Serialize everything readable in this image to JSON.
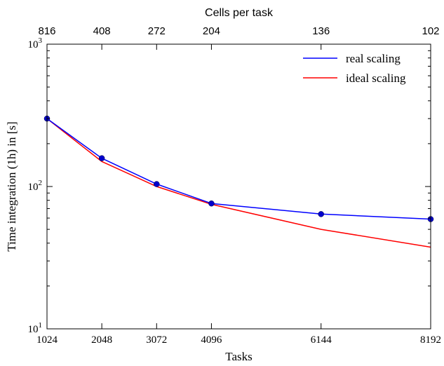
{
  "chart_data": {
    "type": "line",
    "xlabel": "Tasks",
    "ylabel": "Time integration (1h) in [s]",
    "top_xlabel": "Cells per task",
    "x_scale": "linear",
    "y_scale": "log",
    "xlim": [
      1024,
      8192
    ],
    "ylim": [
      10,
      1000
    ],
    "x_ticks": [
      1024,
      2048,
      3072,
      4096,
      6144,
      8192
    ],
    "x_tick_labels": [
      "1024",
      "2048",
      "3072",
      "4096",
      "6144",
      "8192"
    ],
    "top_ticks": [
      1024,
      2048,
      3072,
      4096,
      6144,
      8192
    ],
    "top_tick_labels": [
      "816",
      "408",
      "272",
      "204",
      "136",
      "102"
    ],
    "y_ticks": [
      10,
      100,
      1000
    ],
    "y_tick_labels": [
      {
        "base": "10",
        "exp": "1"
      },
      {
        "base": "10",
        "exp": "2"
      },
      {
        "base": "10",
        "exp": "3"
      }
    ],
    "grid": false,
    "legend_position": "top-right",
    "series": [
      {
        "name": "real scaling",
        "color": "#0000ff",
        "marker_color": "#0000cc",
        "markers": true,
        "x": [
          1024,
          2048,
          3072,
          4096,
          6144,
          8192
        ],
        "y": [
          300,
          158,
          104,
          76,
          64,
          59
        ]
      },
      {
        "name": "ideal scaling",
        "color": "#ff0000",
        "markers": false,
        "x": [
          1024,
          2048,
          3072,
          4096,
          6144,
          8192
        ],
        "y": [
          300,
          150,
          100,
          75,
          50,
          37.5
        ]
      }
    ]
  }
}
